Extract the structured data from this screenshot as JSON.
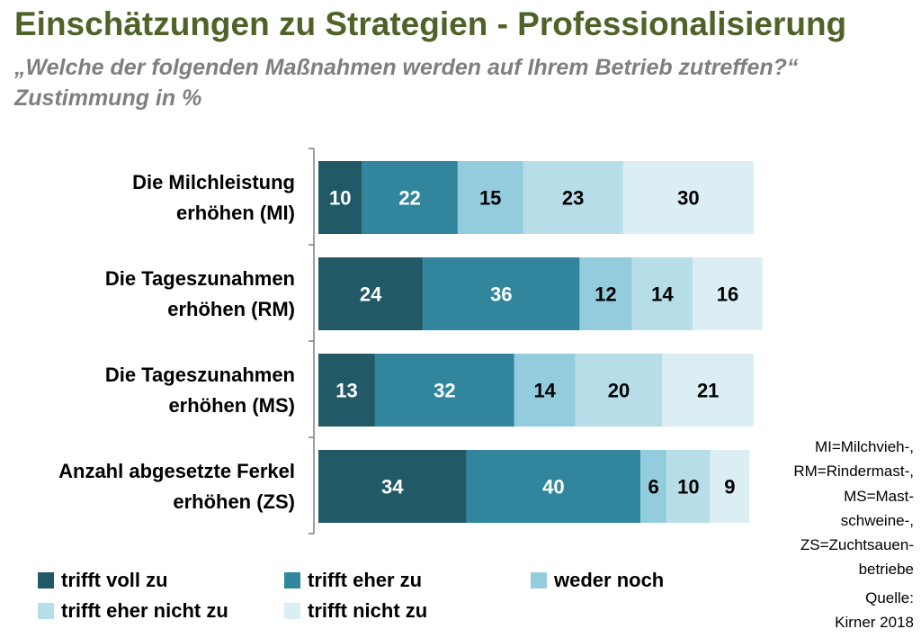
{
  "title": "Einschätzungen zu Strategien - Professionalisierung",
  "subtitle_line1": "„Welche der folgenden Maßnahmen werden auf Ihrem Betrieb zutreffen?“",
  "subtitle_line2": "Zustimmung in %",
  "note": "MI=Milchvieh-, RM=Rindermast-, MS=Mast-schweine-, ZS=Zuchtsauen-betriebe",
  "note_lines": [
    "MI=Milchvieh-,",
    "RM=Rindermast-,",
    "MS=Mast-",
    "schweine-,",
    "ZS=Zuchtsauen-",
    "betriebe"
  ],
  "source_lines": [
    "Quelle:",
    "Kirner 2018"
  ],
  "chart_data": {
    "type": "bar",
    "orientation": "horizontal",
    "stacked": true,
    "normalized_percent": true,
    "categories": [
      "Die Milchleistung erhöhen (MI)",
      "Die Tageszunahmen erhöhen (RM)",
      "Die Tageszunahmen erhöhen (MS)",
      "Anzahl abgesetzte Ferkel erhöhen (ZS)"
    ],
    "category_lines": [
      [
        "Die Milchleistung",
        "erhöhen (MI)"
      ],
      [
        "Die Tageszunahmen",
        "erhöhen (RM)"
      ],
      [
        "Die Tageszunahmen",
        "erhöhen (MS)"
      ],
      [
        "Anzahl abgesetzte Ferkel",
        "erhöhen (ZS)"
      ]
    ],
    "series": [
      {
        "name": "trifft voll zu",
        "values": [
          10,
          24,
          13,
          34
        ],
        "color": "#215967",
        "label_color": "#ffffff"
      },
      {
        "name": "trifft eher zu",
        "values": [
          22,
          36,
          32,
          40
        ],
        "color": "#31859c",
        "label_color": "#ffffff"
      },
      {
        "name": "weder noch",
        "values": [
          15,
          12,
          14,
          6
        ],
        "color": "#93cddd",
        "label_color": "#000000"
      },
      {
        "name": "trifft eher nicht zu",
        "values": [
          23,
          14,
          20,
          10
        ],
        "color": "#b7dee8",
        "label_color": "#000000"
      },
      {
        "name": "trifft nicht zu",
        "values": [
          30,
          16,
          21,
          9
        ],
        "color": "#dbeef4",
        "label_color": "#000000"
      }
    ],
    "xlim": [
      0,
      100
    ],
    "grid": false,
    "legend_position": "bottom",
    "xlabel": "",
    "ylabel": ""
  }
}
